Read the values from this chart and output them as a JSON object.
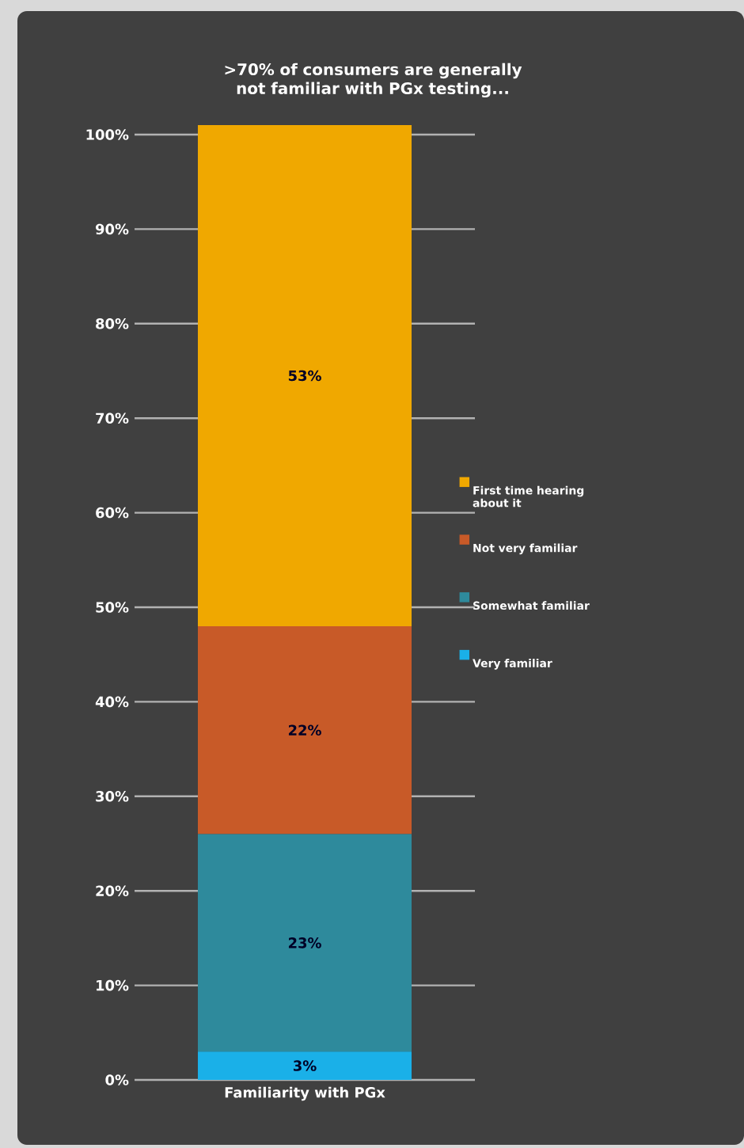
{
  "chart_data": {
    "type": "bar",
    "stacked": true,
    "title": ">70% of consumers are generally not familiar with PGx testing...",
    "xlabel": "Familiarity with PGx",
    "categories": [
      null
    ],
    "series": [
      {
        "name": "Very familiar",
        "color": "#1ab0e8",
        "values": [
          3
        ],
        "value_labels": [
          "3%"
        ]
      },
      {
        "name": "Somewhat familiar",
        "color": "#2e8a9c",
        "values": [
          23
        ],
        "value_labels": [
          "23%"
        ]
      },
      {
        "name": "Not very familiar",
        "color": "#c85a28",
        "values": [
          22
        ],
        "value_labels": [
          "22%"
        ]
      },
      {
        "name": "First time hearing about it",
        "color": "#f0a800",
        "values": [
          53
        ],
        "value_labels": [
          "53%"
        ]
      }
    ],
    "ylim": [
      0,
      101
    ],
    "yticks": [
      {
        "value": 0,
        "label": "0%"
      },
      {
        "value": 10,
        "label": "10%"
      },
      {
        "value": 20,
        "label": "20%"
      },
      {
        "value": 30,
        "label": "30%"
      },
      {
        "value": 40,
        "label": "40%"
      },
      {
        "value": 50,
        "label": "50%"
      },
      {
        "value": 60,
        "label": "60%"
      },
      {
        "value": 70,
        "label": "70%"
      },
      {
        "value": 80,
        "label": "80%"
      },
      {
        "value": 90,
        "label": "90%"
      },
      {
        "value": 100,
        "label": "100%"
      }
    ],
    "grid": "y",
    "legend": "right"
  }
}
